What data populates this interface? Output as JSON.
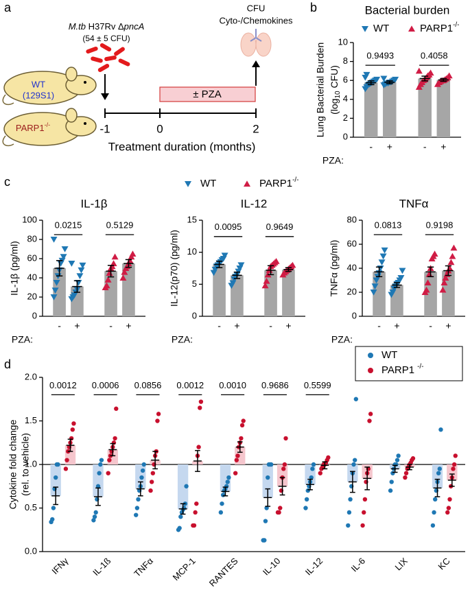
{
  "panel_labels": [
    "a",
    "b",
    "c",
    "d"
  ],
  "panel_a": {
    "strain_italic": "M.tb",
    "strain": " H37Rv Δ",
    "gene": "pncA",
    "dose": "(54 ± 5 CFU)",
    "readout1": "CFU",
    "readout2": "Cyto-/Chemokines",
    "mouse1": "WT",
    "mouse1_strain": "(129S1)",
    "mouse2": "PARP1",
    "mouse2_sup": "-/-",
    "treatment": "± PZA",
    "timeline": [
      "-1",
      "0",
      "2"
    ],
    "timeline_label": "Treatment duration (months)"
  },
  "chart_data": [
    {
      "type": "bar",
      "title": "Bacterial burden",
      "ylabel": [
        "Lung Bacterial Burden"
      ],
      "ylabel_sub": [
        "(log",
        "10",
        " CFU)"
      ],
      "ylim": [
        0,
        10
      ],
      "yticks": [
        0,
        2,
        4,
        6,
        8,
        10
      ],
      "categories": [
        "-",
        "+"
      ],
      "category_label": "PZA:",
      "bar_color": "#a6a6a6",
      "legend": "top",
      "annotations": [
        "0.9493",
        "0.4058"
      ],
      "series": [
        {
          "name": "WT",
          "color": "#1f78b4",
          "marker": "triangle-down",
          "values": [
            5.75,
            5.8
          ],
          "errors": [
            0.2,
            0.15
          ],
          "points": [
            [
              5.1,
              5.3,
              5.5,
              5.6,
              5.7,
              5.8,
              5.9,
              6.0,
              6.1,
              6.3,
              6.6
            ],
            [
              5.5,
              5.6,
              5.7,
              5.7,
              5.8,
              5.8,
              5.9,
              6.0,
              6.1,
              6.2
            ]
          ]
        },
        {
          "name": "PARP1",
          "name_sup": "-/-",
          "color": "#d01c45",
          "marker": "triangle-up",
          "values": [
            6.2,
            6.05
          ],
          "errors": [
            0.25,
            0.15
          ],
          "points": [
            [
              5.3,
              5.6,
              5.8,
              6.0,
              6.1,
              6.3,
              6.5,
              6.6,
              6.8,
              7.0
            ],
            [
              5.6,
              5.8,
              5.9,
              6.0,
              6.0,
              6.1,
              6.2,
              6.3,
              6.5
            ]
          ]
        }
      ]
    },
    {
      "type": "bar",
      "title": "IL-1β",
      "ylabel": [
        "IL-1β  (pg/ml)"
      ],
      "ylim": [
        0,
        100
      ],
      "yticks": [
        0,
        20,
        40,
        60,
        80,
        100
      ],
      "categories": [
        "-",
        "+"
      ],
      "category_label": "PZA:",
      "bar_color": "#a6a6a6",
      "legend": "above",
      "annotations": [
        "0.0215",
        "0.5129"
      ],
      "series": [
        {
          "name": "WT",
          "color": "#1f78b4",
          "marker": "triangle-down",
          "values": [
            50,
            31
          ],
          "errors": [
            8,
            6
          ],
          "points": [
            [
              20,
              27,
              35,
              42,
              48,
              55,
              58,
              62,
              70,
              80
            ],
            [
              18,
              20,
              22,
              25,
              28,
              35,
              42,
              48,
              53,
              55
            ]
          ]
        },
        {
          "name": "PARP1",
          "name_sup": "-/-",
          "color": "#d01c45",
          "marker": "triangle-up",
          "values": [
            47,
            55
          ],
          "errors": [
            6,
            4
          ],
          "points": [
            [
              30,
              32,
              38,
              45,
              50,
              52,
              55,
              62
            ],
            [
              40,
              46,
              50,
              52,
              55,
              58,
              62,
              65
            ]
          ]
        }
      ]
    },
    {
      "type": "bar",
      "title": "IL-12",
      "ylabel": [
        "IL-12(p70)  (pg/ml)"
      ],
      "ylim": [
        0,
        15
      ],
      "yticks": [
        0,
        5,
        10,
        15
      ],
      "categories": [
        "-",
        "+"
      ],
      "category_label": "PZA:",
      "bar_color": "#a6a6a6",
      "annotations": [
        "0.0095",
        "0.9649"
      ],
      "series": [
        {
          "name": "WT",
          "color": "#1f78b4",
          "marker": "triangle-down",
          "values": [
            8.1,
            6.4
          ],
          "errors": [
            0.5,
            0.5
          ],
          "points": [
            [
              6.8,
              7.3,
              7.8,
              8.0,
              8.3,
              8.5,
              8.8,
              9.0,
              9.5
            ],
            [
              4.8,
              5.2,
              5.8,
              6.2,
              6.5,
              7.0,
              7.5,
              8.0
            ]
          ]
        },
        {
          "name": "PARP1",
          "name_sup": "-/-",
          "color": "#d01c45",
          "marker": "triangle-up",
          "values": [
            7.2,
            7.3
          ],
          "errors": [
            0.7,
            0.3
          ],
          "points": [
            [
              4.8,
              5.5,
              6.5,
              7.2,
              7.8,
              8.0,
              8.2,
              8.4,
              8.6
            ],
            [
              6.5,
              6.8,
              7.0,
              7.2,
              7.4,
              7.6,
              7.8,
              8.0
            ]
          ]
        }
      ]
    },
    {
      "type": "bar",
      "title": "TNFα",
      "ylabel": [
        "TNFα  (pg/ml)"
      ],
      "ylim": [
        0,
        80
      ],
      "yticks": [
        0,
        20,
        40,
        60,
        80
      ],
      "categories": [
        "-",
        "+"
      ],
      "category_label": "PZA:",
      "bar_color": "#a6a6a6",
      "annotations": [
        "0.0813",
        "0.9198"
      ],
      "series": [
        {
          "name": "WT",
          "color": "#1f78b4",
          "marker": "triangle-down",
          "values": [
            37,
            26
          ],
          "errors": [
            4,
            2
          ],
          "points": [
            [
              20,
              25,
              30,
              33,
              36,
              40,
              45,
              50,
              55
            ],
            [
              18,
              20,
              23,
              25,
              27,
              28,
              30,
              32,
              38
            ]
          ]
        },
        {
          "name": "PARP1",
          "name_sup": "-/-",
          "color": "#d01c45",
          "marker": "triangle-up",
          "values": [
            37,
            38
          ],
          "errors": [
            4,
            4
          ],
          "points": [
            [
              20,
              22,
              28,
              35,
              40,
              48,
              50,
              52
            ],
            [
              22,
              28,
              32,
              35,
              38,
              40,
              45,
              50,
              57
            ]
          ]
        }
      ]
    },
    {
      "type": "bar",
      "ylabel": [
        "Cytokine fold change",
        "(rel. to vehicle)"
      ],
      "ylim": [
        0,
        2
      ],
      "yticks": [
        {
          "value": 0,
          "label": "0.0"
        },
        {
          "value": 0.5,
          "label": "0.5"
        },
        {
          "value": 1,
          "label": "1.0"
        },
        {
          "value": 1.5,
          "label": "1.5"
        },
        {
          "value": 2,
          "label": "2.0"
        }
      ],
      "baseline": 1,
      "reference_line": 1,
      "legend": "upper right",
      "categories": [
        "IFNγ",
        "IL-1ß",
        "TNFα",
        "MCP-1",
        "RANTES",
        "IL-10",
        "IL-12",
        "IL-6",
        "LIX",
        "KC"
      ],
      "annotations": [
        "0.0012",
        "0.0006",
        "0.0856",
        "0.0012",
        "0.0010",
        "0.9686",
        "0.5599"
      ],
      "series": [
        {
          "name": "WT",
          "color": "#1f78b4",
          "fill": "#c5d8ef",
          "marker": "circle",
          "values": [
            0.64,
            0.63,
            0.72,
            0.49,
            0.69,
            0.62,
            0.77,
            0.8,
            0.95,
            0.73
          ],
          "errors": [
            0.1,
            0.1,
            0.08,
            0.06,
            0.05,
            0.1,
            0.06,
            0.12,
            0.04,
            0.1
          ],
          "points": [
            [
              0.34,
              0.37,
              0.5,
              0.72,
              0.85,
              1.0,
              1.0
            ],
            [
              0.36,
              0.4,
              0.45,
              0.6,
              0.75,
              0.9,
              1.0,
              1.05
            ],
            [
              0.42,
              0.5,
              0.6,
              0.7,
              0.75,
              0.85,
              0.93,
              1.0
            ],
            [
              0.25,
              0.27,
              0.4,
              0.45,
              0.48,
              0.5,
              0.55,
              0.75
            ],
            [
              0.45,
              0.55,
              0.65,
              0.7,
              0.72,
              0.75,
              0.8,
              0.85
            ],
            [
              0.13,
              0.13,
              0.35,
              0.5,
              0.85,
              1.0,
              1.0,
              1.0
            ],
            [
              0.5,
              0.6,
              0.7,
              0.75,
              0.8,
              0.85,
              0.95,
              1.0
            ],
            [
              0.3,
              0.45,
              0.6,
              0.75,
              0.9,
              1.0,
              1.05,
              1.75
            ],
            [
              0.7,
              0.8,
              0.9,
              0.95,
              1.0,
              1.0,
              1.05,
              1.1
            ],
            [
              0.3,
              0.45,
              0.6,
              0.7,
              0.8,
              0.9,
              0.95,
              1.4
            ]
          ]
        },
        {
          "name": "PARP1",
          "name_sup": "-/-",
          "color": "#c8102e",
          "fill": "#f5c6cd",
          "marker": "circle",
          "values": [
            1.22,
            1.17,
            1.05,
            1.04,
            1.2,
            0.75,
            0.99,
            0.84,
            0.97,
            0.82
          ],
          "errors": [
            0.07,
            0.07,
            0.1,
            0.12,
            0.06,
            0.1,
            0.04,
            0.13,
            0.03,
            0.07
          ],
          "points": [
            [
              0.95,
              1.05,
              1.15,
              1.2,
              1.25,
              1.3,
              1.4,
              1.47
            ],
            [
              0.9,
              1.05,
              1.1,
              1.15,
              1.2,
              1.25,
              1.3,
              1.64
            ],
            [
              0.7,
              0.8,
              0.9,
              1.0,
              1.1,
              1.15,
              1.5,
              1.58
            ],
            [
              0.3,
              0.3,
              0.45,
              0.55,
              1.1,
              1.2,
              1.65,
              1.72
            ],
            [
              0.9,
              1.05,
              1.1,
              1.2,
              1.25,
              1.3,
              1.45,
              1.5
            ],
            [
              0.45,
              0.45,
              0.5,
              0.7,
              0.85,
              0.95,
              1.0,
              1.3
            ],
            [
              0.9,
              0.95,
              0.97,
              1.0,
              1.0,
              1.02,
              1.05,
              1.08
            ],
            [
              0.3,
              0.45,
              0.6,
              0.8,
              0.9,
              0.95,
              1.5,
              1.58
            ],
            [
              0.85,
              0.9,
              0.95,
              0.97,
              1.0,
              1.02,
              1.05,
              1.07
            ],
            [
              0.45,
              0.5,
              0.6,
              0.75,
              0.85,
              0.95,
              1.0,
              1.1
            ]
          ]
        }
      ]
    }
  ]
}
